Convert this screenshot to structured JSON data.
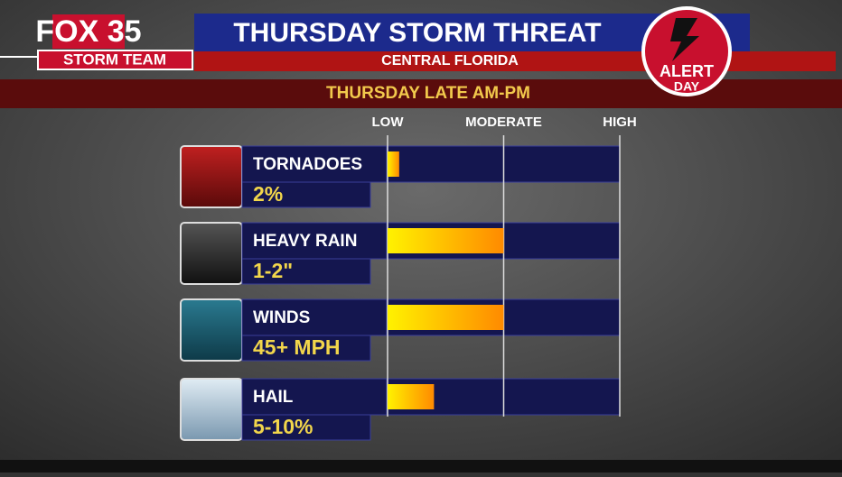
{
  "branding": {
    "station": "FOX 35",
    "team": "STORM TEAM",
    "alert": "ALERT",
    "alert_day": "DAY"
  },
  "chart_data": {
    "type": "bar",
    "title": "THURSDAY STORM THREAT",
    "subtitle": "CENTRAL FLORIDA",
    "period": "THURSDAY LATE AM-PM",
    "categories": [
      "TORNADOES",
      "HEAVY RAIN",
      "WINDS",
      "HAIL"
    ],
    "amounts": [
      "2%",
      "1-2\"",
      "45+ MPH",
      "5-10%"
    ],
    "values": [
      0.1,
      1,
      1,
      0.4
    ],
    "gradient": [
      "#fff200",
      "#ff8a00"
    ],
    "xlim": [
      0,
      2
    ],
    "xticks": [
      {
        "value": 0,
        "label": "LOW"
      },
      {
        "value": 1,
        "label": "MODERATE"
      },
      {
        "value": 2,
        "label": "HIGH"
      }
    ],
    "grid": true
  }
}
